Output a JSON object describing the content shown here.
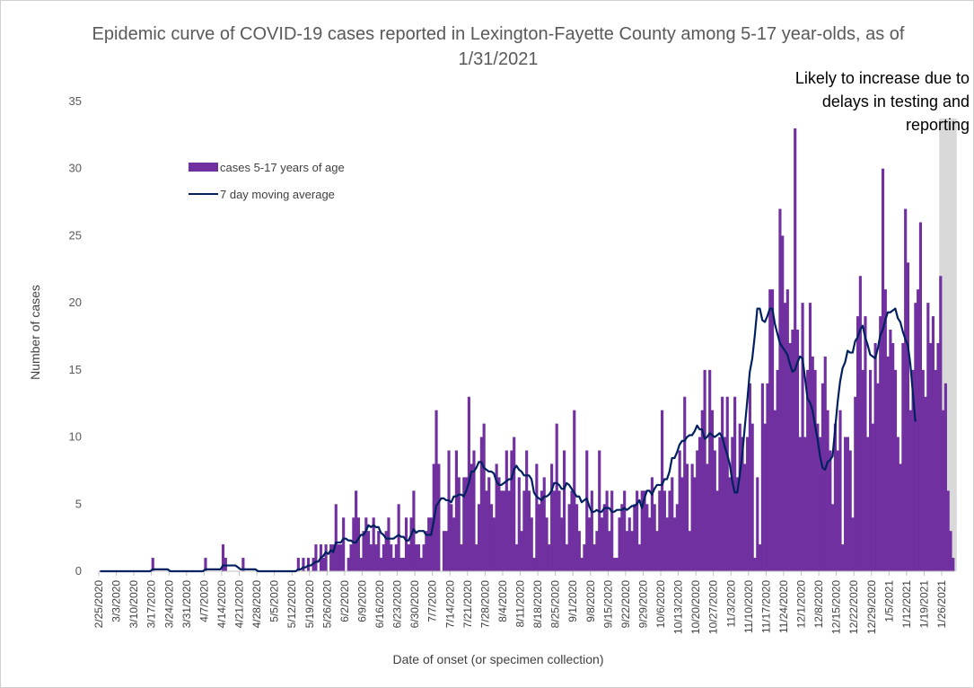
{
  "chart_data": {
    "type": "bar",
    "title": "Epidemic curve of COVID-19 cases reported in Lexington-Fayette County among 5-17 year-olds, as of 1/31/2021",
    "xlabel": "Date of onset (or specimen collection)",
    "ylabel": "Number of cases",
    "ylim": [
      0,
      35
    ],
    "yticks": [
      0,
      5,
      10,
      15,
      20,
      25,
      30,
      35
    ],
    "x_start": "2/25/2020",
    "x_end": "1/31/2021",
    "tick_labels": [
      "2/25/2020",
      "3/3/2020",
      "3/10/2020",
      "3/17/2020",
      "3/24/2020",
      "3/31/2020",
      "4/7/2020",
      "4/14/2020",
      "4/21/2020",
      "4/28/2020",
      "5/5/2020",
      "5/12/2020",
      "5/19/2020",
      "5/26/2020",
      "6/2/2020",
      "6/9/2020",
      "6/16/2020",
      "6/23/2020",
      "6/30/2020",
      "7/7/2020",
      "7/14/2020",
      "7/21/2020",
      "7/28/2020",
      "8/4/2020",
      "8/11/2020",
      "8/18/2020",
      "8/25/2020",
      "9/1/2020",
      "9/8/2020",
      "9/15/2020",
      "9/22/2020",
      "9/29/2020",
      "10/6/2020",
      "10/13/2020",
      "10/20/2020",
      "10/27/2020",
      "11/3/2020",
      "11/10/2020",
      "11/17/2020",
      "11/24/2020",
      "12/1/2020",
      "12/8/2020",
      "12/15/2020",
      "12/22/2020",
      "12/29/2020",
      "1/5/2021",
      "1/12/2021",
      "1/19/2021",
      "1/26/2021"
    ],
    "shaded_region": [
      "1/25/2021",
      "1/31/2021"
    ],
    "annotation": "Likely to increase due to delays in testing and reporting",
    "legend": [
      "cases 5-17 years of age",
      "7 day moving average"
    ],
    "legend_position": "upper-left",
    "grid": false,
    "colors": {
      "bars": "#7030a0",
      "line": "#002060",
      "shade": "#d9d9d9"
    },
    "series": [
      {
        "name": "cases 5-17 years of age",
        "values": [
          0,
          0,
          0,
          0,
          0,
          0,
          0,
          0,
          0,
          0,
          0,
          0,
          0,
          0,
          0,
          0,
          0,
          0,
          0,
          0,
          0,
          1,
          0,
          0,
          0,
          0,
          0,
          0,
          0,
          0,
          0,
          0,
          0,
          0,
          0,
          0,
          0,
          0,
          0,
          0,
          0,
          0,
          1,
          0,
          0,
          0,
          0,
          0,
          0,
          2,
          1,
          0,
          0,
          0,
          0,
          0,
          0,
          1,
          0,
          0,
          0,
          0,
          0,
          0,
          0,
          0,
          0,
          0,
          0,
          0,
          0,
          0,
          0,
          0,
          0,
          0,
          0,
          0,
          0,
          1,
          0,
          1,
          0,
          1,
          0,
          1,
          2,
          0,
          2,
          1,
          2,
          0,
          2,
          2,
          5,
          2,
          2,
          4,
          0,
          1,
          2,
          4,
          6,
          4,
          1,
          3,
          4,
          3,
          2,
          4,
          2,
          3,
          1,
          2,
          3,
          4,
          2,
          1,
          2,
          5,
          1,
          1,
          4,
          2,
          4,
          6,
          2,
          2,
          1,
          2,
          3,
          4,
          4,
          8,
          12,
          8,
          0,
          3,
          3,
          9,
          5,
          4,
          9,
          7,
          2,
          7,
          7,
          13,
          8,
          9,
          2,
          5,
          10,
          11,
          6,
          7,
          5,
          4,
          8,
          7,
          6,
          6,
          9,
          6,
          9,
          10,
          2,
          7,
          3,
          6,
          9,
          6,
          4,
          1,
          8,
          5,
          6,
          7,
          4,
          2,
          8,
          6,
          11,
          6,
          4,
          9,
          2,
          5,
          6,
          12,
          5,
          3,
          1,
          2,
          9,
          4,
          6,
          2,
          3,
          9,
          4,
          5,
          6,
          3,
          6,
          1,
          1,
          4,
          5,
          6,
          3,
          4,
          3,
          5,
          6,
          2,
          6,
          6,
          5,
          4,
          7,
          5,
          3,
          6,
          12,
          6,
          4,
          6,
          7,
          4,
          5,
          9,
          7,
          13,
          8,
          3,
          8,
          7,
          9,
          10,
          12,
          15,
          8,
          15,
          12,
          9,
          6,
          10,
          13,
          10,
          13,
          7,
          10,
          13,
          7,
          11,
          10,
          8,
          10,
          14,
          11,
          1,
          7,
          2,
          14,
          11,
          14,
          21,
          21,
          12,
          15,
          27,
          25,
          20,
          21,
          17,
          18,
          33,
          18,
          10,
          20,
          10,
          15,
          20,
          16,
          15,
          11,
          10,
          14,
          16,
          12,
          9,
          5,
          11,
          9,
          12,
          2,
          10,
          10,
          9,
          4,
          13,
          19,
          22,
          15,
          19,
          10,
          15,
          11,
          17,
          14,
          19,
          30,
          21,
          16,
          18,
          17,
          15,
          10,
          8,
          17,
          27,
          23,
          12,
          15,
          20,
          21,
          26,
          15,
          13,
          20,
          17,
          19,
          15,
          17,
          22,
          12,
          14,
          6,
          3,
          1
        ]
      },
      {
        "name": "7 day moving average",
        "values": [
          0,
          0,
          0,
          0,
          0,
          0,
          0,
          0,
          0,
          0,
          0,
          0,
          0,
          0,
          0,
          0,
          0,
          0,
          0,
          0,
          0,
          0.14,
          0.14,
          0.14,
          0.14,
          0.14,
          0.14,
          0.14,
          0,
          0,
          0,
          0,
          0,
          0,
          0,
          0,
          0,
          0,
          0,
          0,
          0,
          0,
          0.14,
          0.14,
          0.14,
          0.14,
          0.14,
          0.14,
          0.14,
          0.43,
          0.43,
          0.43,
          0.43,
          0.43,
          0.43,
          0.29,
          0.14,
          0.14,
          0.14,
          0.14,
          0.14,
          0.14,
          0.14,
          0,
          0,
          0,
          0,
          0,
          0,
          0,
          0,
          0,
          0,
          0,
          0,
          0,
          0,
          0,
          0,
          0.14,
          0.14,
          0.29,
          0.29,
          0.43,
          0.43,
          0.57,
          0.71,
          0.71,
          1,
          1.14,
          1.43,
          1.29,
          1.57,
          1.43,
          2.14,
          2.14,
          2.14,
          2.43,
          2.43,
          2.29,
          2.29,
          2.14,
          2.14,
          2.43,
          2.71,
          2.71,
          3,
          3.43,
          3.29,
          3.43,
          3.29,
          3.29,
          2.86,
          2.71,
          2.43,
          2.43,
          2.43,
          2.43,
          2.57,
          2.71,
          2.57,
          2.57,
          2.29,
          2.29,
          2.71,
          3.14,
          2.86,
          3,
          3,
          3,
          2.71,
          2.71,
          2.71,
          3.71,
          4.86,
          5.14,
          5.43,
          5.43,
          5.29,
          5.29,
          5.14,
          5.57,
          5.57,
          5.71,
          5.71,
          5.57,
          6,
          6.57,
          7.43,
          7.43,
          7.71,
          8.14,
          8.14,
          7.71,
          7.57,
          7.43,
          7.43,
          7.29,
          6.71,
          6.43,
          6.43,
          6.57,
          6.71,
          6.86,
          6.86,
          7.57,
          7.86,
          7.57,
          7.43,
          7.14,
          7.14,
          7.14,
          6.86,
          5.86,
          5.57,
          5.43,
          5.29,
          5.57,
          5.57,
          5.71,
          6,
          6.57,
          6.57,
          6.43,
          6.14,
          6.14,
          6.57,
          6.43,
          6.14,
          5.86,
          5.57,
          5.57,
          5.14,
          5.29,
          5.43,
          4.86,
          4.43,
          4.43,
          4.57,
          4.43,
          4.43,
          4.71,
          4.71,
          4.71,
          4.43,
          4.43,
          4.57,
          4.57,
          4.57,
          4.71,
          4.57,
          4.71,
          4.86,
          4.86,
          5,
          5.29,
          4.71,
          5.43,
          6,
          6,
          5.71,
          6.14,
          6.43,
          6.43,
          6.43,
          6.86,
          6.86,
          7.43,
          8.43,
          8.43,
          8.86,
          9.43,
          9.71,
          9.71,
          10,
          10.14,
          10.14,
          10.43,
          10.86,
          10.57,
          10.57,
          9.86,
          10,
          10.29,
          10.14,
          10,
          10.14,
          10.29,
          10,
          9.29,
          8.71,
          8,
          6.71,
          5.86,
          5.86,
          7.14,
          8.71,
          10.71,
          12.71,
          14.86,
          15.86,
          17.57,
          19.57,
          19.57,
          18.71,
          18.57,
          19,
          19.57,
          19.57,
          18.43,
          17.71,
          17,
          16.71,
          16.43,
          16.14,
          15.43,
          14.86,
          15,
          15.57,
          16,
          15.86,
          14.43,
          12.86,
          12.57,
          12,
          10.86,
          9.86,
          8.57,
          7.71,
          7.57,
          8.14,
          8.29,
          8.57,
          10.57,
          12.57,
          14.14,
          15.14,
          15.57,
          16.43,
          16.29,
          16.29,
          17.14,
          17.43,
          18,
          18.29,
          17.43,
          16.86,
          16.14,
          16,
          15.86,
          16.57,
          17.57,
          18,
          18.71,
          19.29,
          19.29,
          19.43,
          19.57,
          18.86,
          18.57,
          17.86,
          17.29,
          16.86,
          15.43,
          13.29,
          11.14
        ]
      }
    ]
  }
}
